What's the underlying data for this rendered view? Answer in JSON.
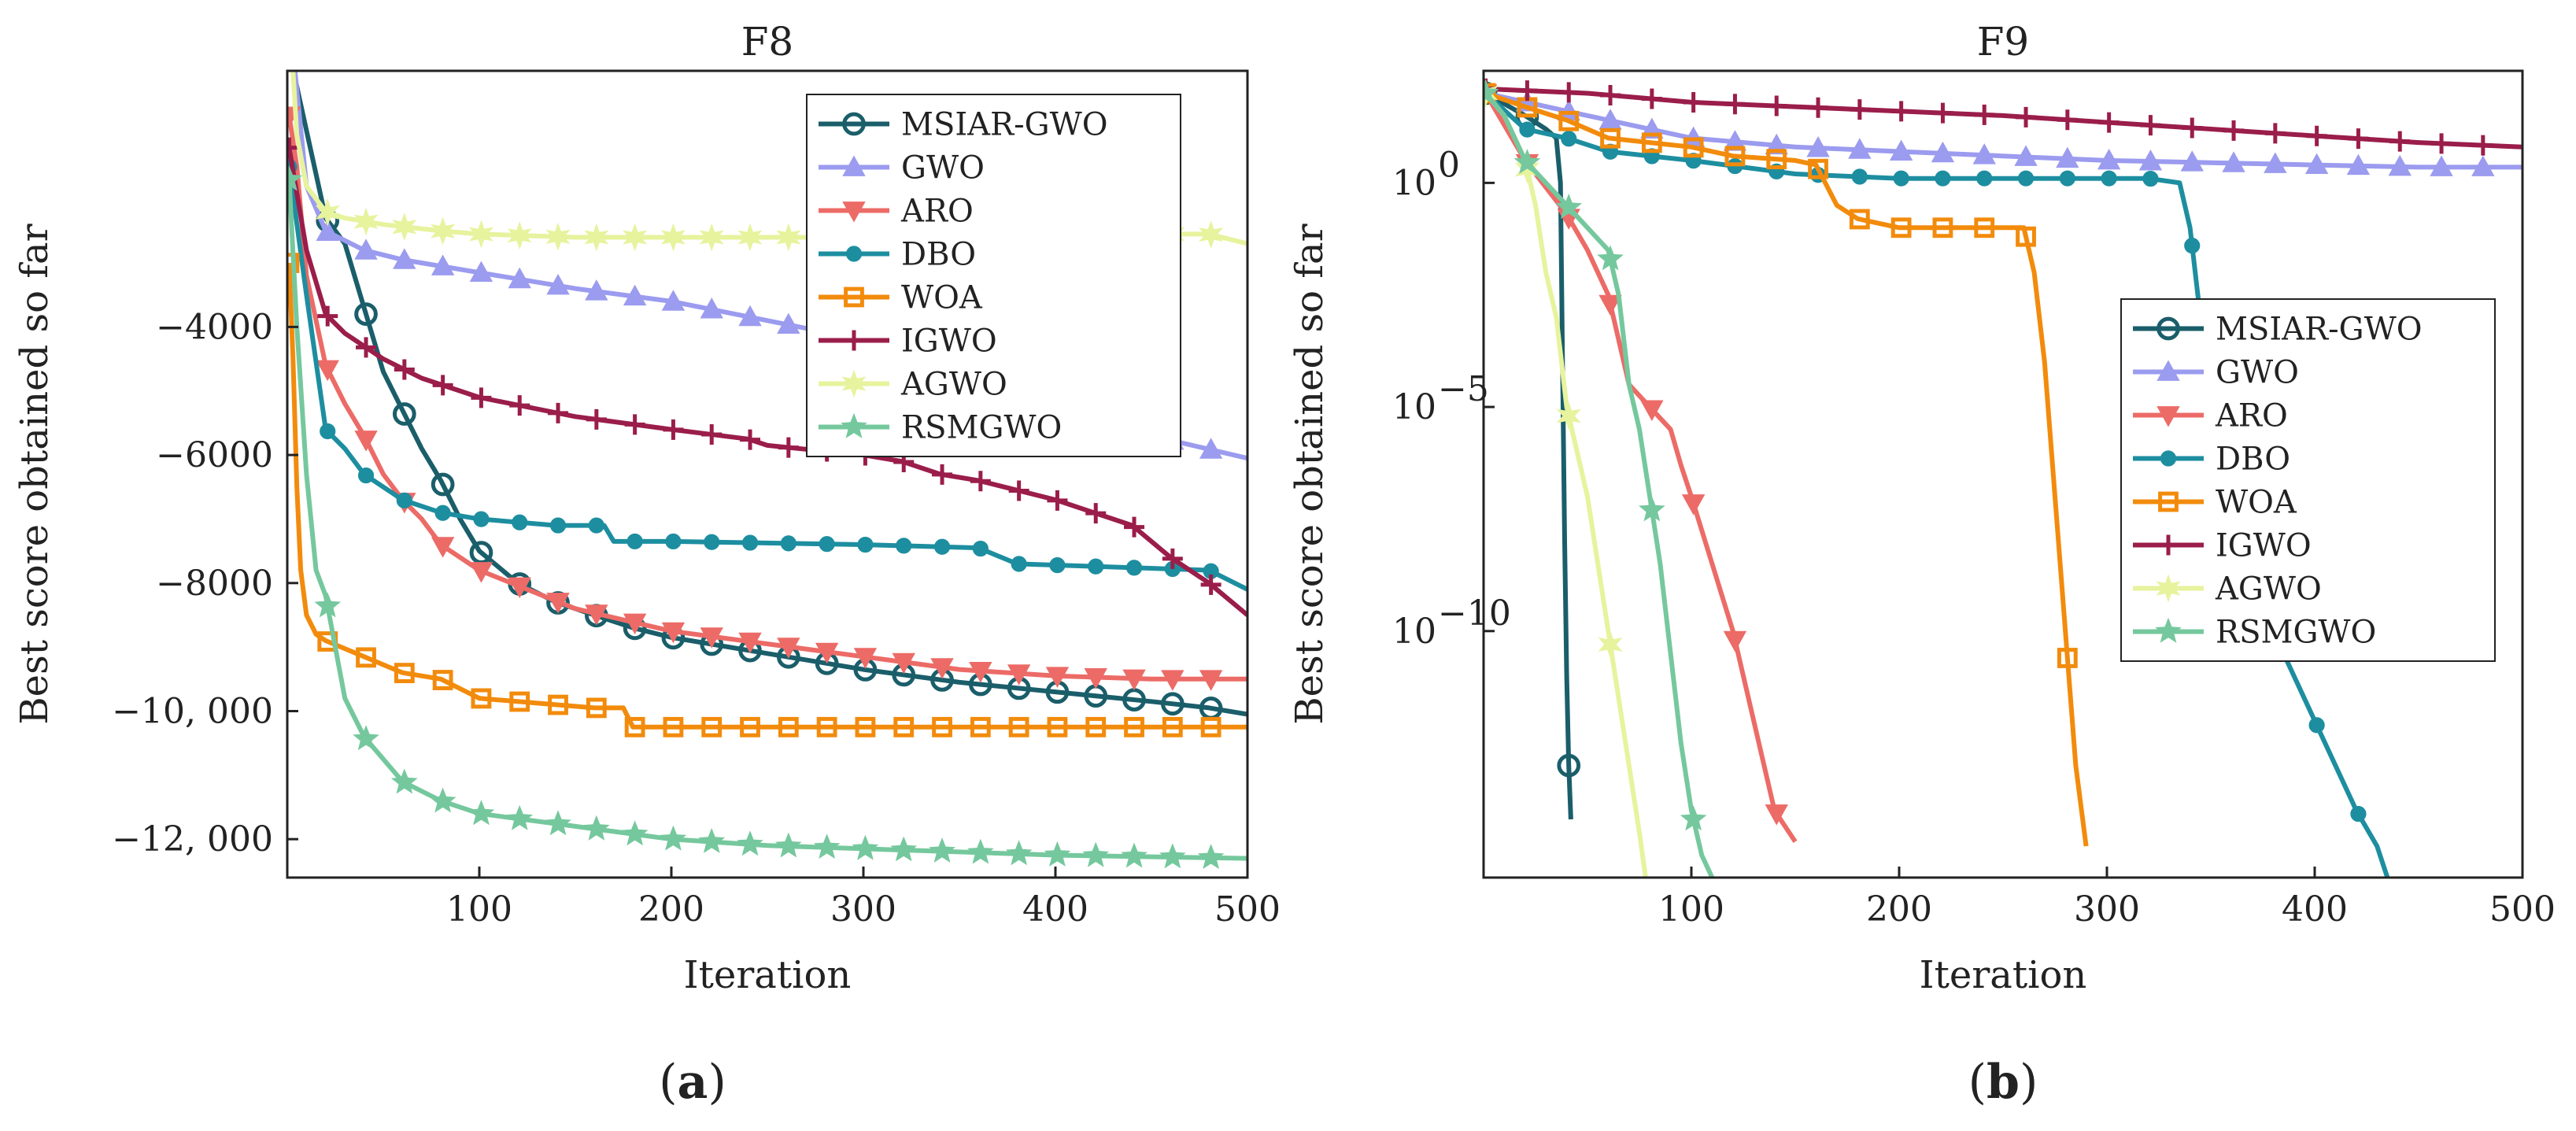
{
  "chart_data": [
    {
      "type": "line",
      "panel_label": "(a)",
      "panel_letter": "a",
      "title": "F8",
      "xlabel": "Iteration",
      "ylabel": "Best score obtained so far",
      "xlim": [
        0,
        500
      ],
      "ylim": [
        -12600,
        0
      ],
      "yscale": "linear",
      "xticks": [
        100,
        200,
        300,
        400,
        500
      ],
      "xtick_labels": [
        "100",
        "200",
        "300",
        "400",
        "500"
      ],
      "yticks": [
        -4000,
        -6000,
        -8000,
        -10000,
        -12000
      ],
      "ytick_labels": [
        "−4000",
        "−6000",
        "−8000",
        "−10, 000",
        "−12, 000"
      ],
      "legend_position": "top-right",
      "series": [
        {
          "name": "MSIAR-GWO",
          "color": "#1a5e6a",
          "marker": "circle",
          "x": [
            1,
            20,
            30,
            40,
            50,
            60,
            70,
            80,
            90,
            100,
            120,
            140,
            160,
            180,
            200,
            250,
            300,
            350,
            400,
            450,
            480,
            500
          ],
          "y": [
            300,
            -2300,
            -2700,
            -3700,
            -4700,
            -5300,
            -5900,
            -6400,
            -7000,
            -7500,
            -8000,
            -8300,
            -8500,
            -8700,
            -8850,
            -9100,
            -9350,
            -9550,
            -9700,
            -9850,
            -9950,
            -10050
          ]
        },
        {
          "name": "GWO",
          "color": "#9b9bef",
          "marker": "triangle-up",
          "x": [
            1,
            10,
            20,
            40,
            60,
            100,
            150,
            200,
            250,
            300,
            350,
            400,
            450,
            500
          ],
          "y": [
            900,
            -1800,
            -2500,
            -2800,
            -2950,
            -3150,
            -3400,
            -3600,
            -3900,
            -4200,
            -4500,
            -5000,
            -5700,
            -6050
          ]
        },
        {
          "name": "ARO",
          "color": "#ec6b67",
          "marker": "triangle-down",
          "x": [
            1,
            5,
            10,
            20,
            30,
            40,
            50,
            60,
            70,
            80,
            100,
            150,
            200,
            250,
            300,
            350,
            400,
            450,
            500
          ],
          "y": [
            -700,
            -1500,
            -3200,
            -4600,
            -5200,
            -5700,
            -6300,
            -6700,
            -7000,
            -7400,
            -7800,
            -8400,
            -8750,
            -8950,
            -9150,
            -9350,
            -9450,
            -9500,
            -9500
          ]
        },
        {
          "name": "DBO",
          "color": "#1d8ea0",
          "marker": "dot",
          "x": [
            1,
            10,
            20,
            30,
            40,
            60,
            80,
            100,
            140,
            165,
            170,
            200,
            300,
            360,
            380,
            480,
            500
          ],
          "y": [
            -1500,
            -3500,
            -5600,
            -5900,
            -6300,
            -6700,
            -6900,
            -7000,
            -7100,
            -7100,
            -7350,
            -7350,
            -7400,
            -7450,
            -7700,
            -7800,
            -8100
          ]
        },
        {
          "name": "WOA",
          "color": "#f28b0c",
          "marker": "square",
          "x": [
            1,
            3,
            5,
            7,
            10,
            15,
            20,
            40,
            60,
            80,
            100,
            120,
            140,
            160,
            175,
            180,
            200,
            300,
            400,
            500
          ],
          "y": [
            -3000,
            -4500,
            -6500,
            -7800,
            -8500,
            -8800,
            -8900,
            -9150,
            -9400,
            -9500,
            -9800,
            -9850,
            -9900,
            -9950,
            -9950,
            -10250,
            -10250,
            -10250,
            -10250,
            -10250
          ]
        },
        {
          "name": "IGWO",
          "color": "#9a1d4a",
          "marker": "plus",
          "x": [
            1,
            10,
            20,
            30,
            50,
            70,
            100,
            150,
            200,
            240,
            250,
            300,
            320,
            340,
            360,
            400,
            420,
            440,
            460,
            480,
            500
          ],
          "y": [
            -1200,
            -2800,
            -3800,
            -4100,
            -4500,
            -4800,
            -5100,
            -5400,
            -5600,
            -5750,
            -5850,
            -6000,
            -6100,
            -6300,
            -6400,
            -6700,
            -6900,
            -7100,
            -7600,
            -8000,
            -8500
          ]
        },
        {
          "name": "AGWO",
          "color": "#e7f39d",
          "marker": "star6",
          "x": [
            1,
            5,
            10,
            20,
            30,
            50,
            80,
            100,
            150,
            200,
            300,
            400,
            480,
            500
          ],
          "y": [
            1000,
            -1000,
            -1800,
            -2200,
            -2300,
            -2400,
            -2500,
            -2550,
            -2600,
            -2600,
            -2600,
            -2550,
            -2550,
            -2700
          ]
        },
        {
          "name": "RSMGWO",
          "color": "#75c89d",
          "marker": "star5",
          "x": [
            1,
            5,
            10,
            15,
            20,
            30,
            40,
            60,
            80,
            100,
            150,
            200,
            250,
            300,
            400,
            500
          ],
          "y": [
            -1700,
            -4000,
            -6300,
            -7800,
            -8200,
            -9800,
            -10400,
            -11100,
            -11400,
            -11600,
            -11800,
            -12000,
            -12100,
            -12150,
            -12250,
            -12300
          ]
        }
      ]
    },
    {
      "type": "line",
      "panel_label": "(b)",
      "panel_letter": "b",
      "title": "F9",
      "xlabel": "Iteration",
      "ylabel": "Best score obtained so far",
      "xlim": [
        0,
        500
      ],
      "ylim": [
        -15.5,
        2.5
      ],
      "yscale": "log10",
      "xticks": [
        100,
        200,
        300,
        400,
        500
      ],
      "xtick_labels": [
        "100",
        "200",
        "300",
        "400",
        "500"
      ],
      "ytick_exponents": [
        0,
        -5,
        -10
      ],
      "ytick_base": "10",
      "ytick_first_label": "10",
      "ytick_first_value": "0",
      "legend_position": "right",
      "series": [
        {
          "name": "MSIAR-GWO",
          "color": "#1a5e6a",
          "marker": "circle",
          "x": [
            1,
            20,
            30,
            35,
            37,
            38,
            39,
            40,
            41,
            42
          ],
          "y": [
            2.0,
            1.5,
            1.2,
            1.0,
            0.0,
            -4.0,
            -8.0,
            -11.0,
            -13.0,
            -14.2
          ]
        },
        {
          "name": "GWO",
          "color": "#9b9bef",
          "marker": "triangle-up",
          "x": [
            1,
            50,
            100,
            150,
            200,
            250,
            300,
            350,
            400,
            450,
            500
          ],
          "y": [
            2.0,
            1.5,
            1.0,
            0.8,
            0.7,
            0.6,
            0.5,
            0.45,
            0.4,
            0.35,
            0.35
          ]
        },
        {
          "name": "ARO",
          "color": "#ec6b67",
          "marker": "triangle-down",
          "x": [
            1,
            20,
            40,
            50,
            60,
            65,
            70,
            80,
            90,
            95,
            100,
            110,
            120,
            130,
            140,
            150
          ],
          "y": [
            2.0,
            0.5,
            -0.7,
            -1.5,
            -2.5,
            -3.5,
            -4.5,
            -5.0,
            -5.5,
            -6.3,
            -7.0,
            -8.5,
            -10.0,
            -12.0,
            -14.0,
            -14.7
          ]
        },
        {
          "name": "DBO",
          "color": "#1d8ea0",
          "marker": "dot",
          "x": [
            1,
            20,
            40,
            60,
            100,
            150,
            200,
            300,
            320,
            335,
            340,
            345,
            360,
            380,
            400,
            420,
            430,
            435
          ],
          "y": [
            2.0,
            1.2,
            1.0,
            0.7,
            0.5,
            0.2,
            0.1,
            0.1,
            0.1,
            0.0,
            -1.0,
            -3.0,
            -7.0,
            -10.0,
            -12.0,
            -14.0,
            -14.8,
            -15.5
          ]
        },
        {
          "name": "WOA",
          "color": "#f28b0c",
          "marker": "square",
          "x": [
            1,
            20,
            40,
            60,
            80,
            100,
            120,
            150,
            160,
            170,
            180,
            200,
            240,
            260,
            265,
            270,
            275,
            280,
            285,
            290
          ],
          "y": [
            2.0,
            1.7,
            1.4,
            1.0,
            0.9,
            0.8,
            0.6,
            0.5,
            0.4,
            -0.5,
            -0.8,
            -1.0,
            -1.0,
            -1.0,
            -2.0,
            -4.0,
            -7.0,
            -10.0,
            -13.0,
            -14.8
          ]
        },
        {
          "name": "IGWO",
          "color": "#9a1d4a",
          "marker": "plus",
          "x": [
            1,
            50,
            100,
            150,
            200,
            250,
            300,
            350,
            400,
            450,
            500
          ],
          "y": [
            2.1,
            2.0,
            1.8,
            1.7,
            1.6,
            1.5,
            1.35,
            1.2,
            1.05,
            0.9,
            0.8
          ]
        },
        {
          "name": "AGWO",
          "color": "#e7f39d",
          "marker": "star6",
          "x": [
            1,
            10,
            20,
            25,
            30,
            35,
            40,
            45,
            50,
            55,
            60,
            65,
            70,
            75,
            78
          ],
          "y": [
            2.0,
            1.5,
            0.5,
            -0.5,
            -2.0,
            -3.0,
            -5.0,
            -6.0,
            -7.0,
            -8.5,
            -10.0,
            -11.5,
            -13.0,
            -14.5,
            -15.5
          ]
        },
        {
          "name": "RSMGWO",
          "color": "#75c89d",
          "marker": "star5",
          "x": [
            1,
            10,
            20,
            30,
            40,
            50,
            60,
            65,
            70,
            75,
            80,
            85,
            90,
            95,
            100,
            105,
            110
          ],
          "y": [
            2.0,
            1.5,
            0.5,
            0.0,
            -0.5,
            -1.0,
            -1.5,
            -2.5,
            -4.5,
            -5.5,
            -7.0,
            -8.5,
            -10.5,
            -12.5,
            -14.0,
            -15.0,
            -15.5
          ]
        }
      ]
    }
  ]
}
